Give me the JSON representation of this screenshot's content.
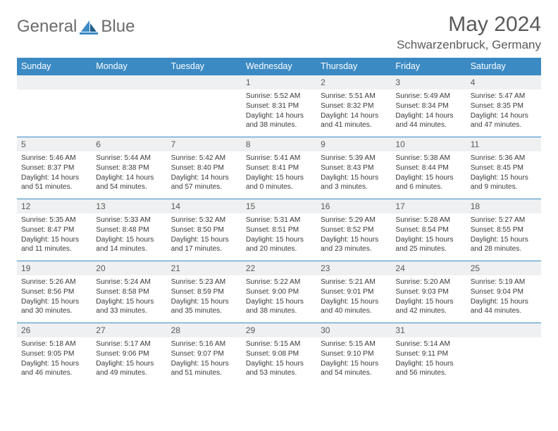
{
  "brand": {
    "name1": "General",
    "name2": "Blue"
  },
  "title": "May 2024",
  "location": "Schwarzenbruck, Germany",
  "colors": {
    "header_bg": "#3b8ac4",
    "header_text": "#ffffff",
    "num_bg": "#eef0f1",
    "border": "#3b8ac4",
    "text": "#3a3a3a",
    "title_text": "#5a5a5a"
  },
  "weekdays": [
    "Sunday",
    "Monday",
    "Tuesday",
    "Wednesday",
    "Thursday",
    "Friday",
    "Saturday"
  ],
  "weeks": [
    [
      null,
      null,
      null,
      {
        "n": "1",
        "sr": "Sunrise: 5:52 AM",
        "ss": "Sunset: 8:31 PM",
        "d1": "Daylight: 14 hours",
        "d2": "and 38 minutes."
      },
      {
        "n": "2",
        "sr": "Sunrise: 5:51 AM",
        "ss": "Sunset: 8:32 PM",
        "d1": "Daylight: 14 hours",
        "d2": "and 41 minutes."
      },
      {
        "n": "3",
        "sr": "Sunrise: 5:49 AM",
        "ss": "Sunset: 8:34 PM",
        "d1": "Daylight: 14 hours",
        "d2": "and 44 minutes."
      },
      {
        "n": "4",
        "sr": "Sunrise: 5:47 AM",
        "ss": "Sunset: 8:35 PM",
        "d1": "Daylight: 14 hours",
        "d2": "and 47 minutes."
      }
    ],
    [
      {
        "n": "5",
        "sr": "Sunrise: 5:46 AM",
        "ss": "Sunset: 8:37 PM",
        "d1": "Daylight: 14 hours",
        "d2": "and 51 minutes."
      },
      {
        "n": "6",
        "sr": "Sunrise: 5:44 AM",
        "ss": "Sunset: 8:38 PM",
        "d1": "Daylight: 14 hours",
        "d2": "and 54 minutes."
      },
      {
        "n": "7",
        "sr": "Sunrise: 5:42 AM",
        "ss": "Sunset: 8:40 PM",
        "d1": "Daylight: 14 hours",
        "d2": "and 57 minutes."
      },
      {
        "n": "8",
        "sr": "Sunrise: 5:41 AM",
        "ss": "Sunset: 8:41 PM",
        "d1": "Daylight: 15 hours",
        "d2": "and 0 minutes."
      },
      {
        "n": "9",
        "sr": "Sunrise: 5:39 AM",
        "ss": "Sunset: 8:43 PM",
        "d1": "Daylight: 15 hours",
        "d2": "and 3 minutes."
      },
      {
        "n": "10",
        "sr": "Sunrise: 5:38 AM",
        "ss": "Sunset: 8:44 PM",
        "d1": "Daylight: 15 hours",
        "d2": "and 6 minutes."
      },
      {
        "n": "11",
        "sr": "Sunrise: 5:36 AM",
        "ss": "Sunset: 8:45 PM",
        "d1": "Daylight: 15 hours",
        "d2": "and 9 minutes."
      }
    ],
    [
      {
        "n": "12",
        "sr": "Sunrise: 5:35 AM",
        "ss": "Sunset: 8:47 PM",
        "d1": "Daylight: 15 hours",
        "d2": "and 11 minutes."
      },
      {
        "n": "13",
        "sr": "Sunrise: 5:33 AM",
        "ss": "Sunset: 8:48 PM",
        "d1": "Daylight: 15 hours",
        "d2": "and 14 minutes."
      },
      {
        "n": "14",
        "sr": "Sunrise: 5:32 AM",
        "ss": "Sunset: 8:50 PM",
        "d1": "Daylight: 15 hours",
        "d2": "and 17 minutes."
      },
      {
        "n": "15",
        "sr": "Sunrise: 5:31 AM",
        "ss": "Sunset: 8:51 PM",
        "d1": "Daylight: 15 hours",
        "d2": "and 20 minutes."
      },
      {
        "n": "16",
        "sr": "Sunrise: 5:29 AM",
        "ss": "Sunset: 8:52 PM",
        "d1": "Daylight: 15 hours",
        "d2": "and 23 minutes."
      },
      {
        "n": "17",
        "sr": "Sunrise: 5:28 AM",
        "ss": "Sunset: 8:54 PM",
        "d1": "Daylight: 15 hours",
        "d2": "and 25 minutes."
      },
      {
        "n": "18",
        "sr": "Sunrise: 5:27 AM",
        "ss": "Sunset: 8:55 PM",
        "d1": "Daylight: 15 hours",
        "d2": "and 28 minutes."
      }
    ],
    [
      {
        "n": "19",
        "sr": "Sunrise: 5:26 AM",
        "ss": "Sunset: 8:56 PM",
        "d1": "Daylight: 15 hours",
        "d2": "and 30 minutes."
      },
      {
        "n": "20",
        "sr": "Sunrise: 5:24 AM",
        "ss": "Sunset: 8:58 PM",
        "d1": "Daylight: 15 hours",
        "d2": "and 33 minutes."
      },
      {
        "n": "21",
        "sr": "Sunrise: 5:23 AM",
        "ss": "Sunset: 8:59 PM",
        "d1": "Daylight: 15 hours",
        "d2": "and 35 minutes."
      },
      {
        "n": "22",
        "sr": "Sunrise: 5:22 AM",
        "ss": "Sunset: 9:00 PM",
        "d1": "Daylight: 15 hours",
        "d2": "and 38 minutes."
      },
      {
        "n": "23",
        "sr": "Sunrise: 5:21 AM",
        "ss": "Sunset: 9:01 PM",
        "d1": "Daylight: 15 hours",
        "d2": "and 40 minutes."
      },
      {
        "n": "24",
        "sr": "Sunrise: 5:20 AM",
        "ss": "Sunset: 9:03 PM",
        "d1": "Daylight: 15 hours",
        "d2": "and 42 minutes."
      },
      {
        "n": "25",
        "sr": "Sunrise: 5:19 AM",
        "ss": "Sunset: 9:04 PM",
        "d1": "Daylight: 15 hours",
        "d2": "and 44 minutes."
      }
    ],
    [
      {
        "n": "26",
        "sr": "Sunrise: 5:18 AM",
        "ss": "Sunset: 9:05 PM",
        "d1": "Daylight: 15 hours",
        "d2": "and 46 minutes."
      },
      {
        "n": "27",
        "sr": "Sunrise: 5:17 AM",
        "ss": "Sunset: 9:06 PM",
        "d1": "Daylight: 15 hours",
        "d2": "and 49 minutes."
      },
      {
        "n": "28",
        "sr": "Sunrise: 5:16 AM",
        "ss": "Sunset: 9:07 PM",
        "d1": "Daylight: 15 hours",
        "d2": "and 51 minutes."
      },
      {
        "n": "29",
        "sr": "Sunrise: 5:15 AM",
        "ss": "Sunset: 9:08 PM",
        "d1": "Daylight: 15 hours",
        "d2": "and 53 minutes."
      },
      {
        "n": "30",
        "sr": "Sunrise: 5:15 AM",
        "ss": "Sunset: 9:10 PM",
        "d1": "Daylight: 15 hours",
        "d2": "and 54 minutes."
      },
      {
        "n": "31",
        "sr": "Sunrise: 5:14 AM",
        "ss": "Sunset: 9:11 PM",
        "d1": "Daylight: 15 hours",
        "d2": "and 56 minutes."
      },
      null
    ]
  ]
}
